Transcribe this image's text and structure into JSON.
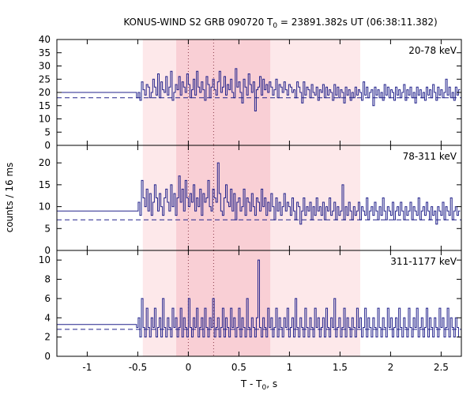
{
  "chart_data": {
    "type": "line",
    "title": {
      "prefix": "KONUS-WIND S2 GRB 090720 T",
      "sub": "0",
      "suffix": " = 23891.382s UT (06:38:11.382)"
    },
    "xlabel": {
      "prefix": "T - T",
      "sub": "0",
      "suffix": ", s"
    },
    "ylabel": "counts / 16 ms",
    "xlim": [
      -1.3,
      2.7
    ],
    "x_ticks": [
      -1,
      -0.5,
      0,
      0.5,
      1,
      1.5,
      2,
      2.5
    ],
    "x_tick_labels": [
      "-1",
      "-0.5",
      "0",
      "0.5",
      "1",
      "1.5",
      "2",
      "2.5"
    ],
    "shaded_regions": [
      {
        "x0": -0.45,
        "x1": 1.7,
        "color": "#fde8ea"
      },
      {
        "x0": -0.12,
        "x1": 0.81,
        "color": "#f9cfd5"
      }
    ],
    "vertical_markers": [
      0.0,
      0.25
    ],
    "bin_width_s": 0.016,
    "series_color": "#22228b",
    "panels": [
      {
        "label": "20-78 keV",
        "ylim": [
          0,
          40
        ],
        "y_ticks": [
          0,
          5,
          10,
          15,
          20,
          25,
          30,
          35,
          40
        ],
        "background_level": 18,
        "pre_trigger_level": 20,
        "series": {
          "t_start": -0.512,
          "values": [
            18,
            20,
            17,
            24,
            21,
            19,
            23,
            22,
            18,
            20,
            25,
            22,
            19,
            27,
            18,
            24,
            21,
            20,
            26,
            19,
            22,
            28,
            17,
            20,
            23,
            21,
            26,
            19,
            24,
            22,
            20,
            27,
            23,
            18,
            21,
            25,
            19,
            28,
            22,
            20,
            24,
            21,
            17,
            26,
            23,
            18,
            22,
            25,
            21,
            19,
            24,
            28,
            20,
            22,
            26,
            19,
            23,
            21,
            25,
            20,
            18,
            29,
            22,
            24,
            20,
            16,
            25,
            22,
            19,
            27,
            23,
            20,
            24,
            13,
            21,
            22,
            26,
            19,
            25,
            21,
            23,
            20,
            24,
            22,
            19,
            21,
            25,
            18,
            23,
            22,
            20,
            24,
            21,
            19,
            23,
            22,
            20,
            21,
            18,
            24,
            22,
            20,
            16,
            24,
            19,
            22,
            21,
            18,
            23,
            20,
            19,
            22,
            17,
            21,
            20,
            23,
            18,
            22,
            19,
            21,
            20,
            17,
            23,
            19,
            22,
            18,
            21,
            20,
            16,
            22,
            19,
            21,
            17,
            20,
            18,
            22,
            19,
            21,
            20,
            17,
            24,
            19,
            22,
            18,
            20,
            21,
            15,
            22,
            19,
            21,
            18,
            20,
            17,
            23,
            19,
            22,
            18,
            21,
            20,
            17,
            22,
            19,
            21,
            18,
            20,
            23,
            17,
            21,
            19,
            22,
            18,
            20,
            16,
            22,
            19,
            21,
            18,
            20,
            17,
            22,
            19,
            21,
            18,
            23,
            20,
            17,
            22,
            19,
            21,
            18,
            20,
            25,
            19,
            22,
            18,
            20,
            17,
            22,
            19,
            21
          ]
        }
      },
      {
        "label": "78-311 keV",
        "ylim": [
          0,
          24
        ],
        "y_ticks": [
          0,
          5,
          10,
          15,
          20
        ],
        "background_level": 7,
        "pre_trigger_level": 9,
        "series": {
          "t_start": -0.512,
          "values": [
            9,
            11,
            8,
            16,
            12,
            10,
            14,
            9,
            13,
            8,
            11,
            15,
            12,
            9,
            13,
            10,
            8,
            12,
            14,
            11,
            9,
            15,
            10,
            13,
            8,
            12,
            17,
            11,
            14,
            9,
            16,
            12,
            10,
            13,
            11,
            15,
            9,
            12,
            10,
            14,
            8,
            13,
            11,
            12,
            16,
            10,
            9,
            14,
            12,
            11,
            20,
            13,
            9,
            8,
            12,
            15,
            11,
            10,
            14,
            9,
            13,
            7,
            11,
            12,
            9,
            10,
            14,
            8,
            12,
            11,
            9,
            13,
            10,
            8,
            12,
            11,
            9,
            14,
            10,
            12,
            8,
            11,
            9,
            13,
            10,
            7,
            12,
            9,
            11,
            8,
            10,
            13,
            9,
            11,
            10,
            8,
            12,
            9,
            7,
            11,
            10,
            6,
            9,
            12,
            8,
            10,
            9,
            11,
            7,
            10,
            8,
            12,
            9,
            10,
            8,
            11,
            7,
            10,
            9,
            12,
            8,
            9,
            11,
            7,
            10,
            8,
            9,
            15,
            7,
            10,
            8,
            11,
            9,
            7,
            10,
            8,
            9,
            11,
            7,
            10,
            9,
            8,
            12,
            7,
            9,
            10,
            8,
            11,
            9,
            7,
            10,
            8,
            12,
            9,
            7,
            10,
            9,
            8,
            11,
            7,
            9,
            10,
            8,
            11,
            9,
            7,
            10,
            8,
            9,
            11,
            7,
            10,
            9,
            8,
            12,
            7,
            9,
            10,
            8,
            11,
            9,
            7,
            10,
            8,
            9,
            6,
            10,
            9,
            8,
            11,
            7,
            10,
            9,
            8,
            12,
            7,
            9,
            10,
            8,
            9
          ]
        }
      },
      {
        "label": "311-1177 keV",
        "ylim": [
          0,
          11
        ],
        "y_ticks": [
          0,
          2,
          4,
          6,
          8,
          10
        ],
        "background_level": 2.8,
        "pre_trigger_level": 3.3,
        "series": {
          "t_start": -0.512,
          "values": [
            3,
            4,
            2,
            6,
            3,
            2,
            5,
            3,
            2,
            4,
            3,
            5,
            2,
            3,
            4,
            2,
            6,
            3,
            2,
            4,
            3,
            2,
            5,
            3,
            4,
            2,
            3,
            5,
            2,
            4,
            3,
            2,
            6,
            3,
            2,
            4,
            3,
            5,
            2,
            3,
            4,
            2,
            5,
            3,
            2,
            4,
            3,
            6,
            2,
            3,
            4,
            2,
            3,
            5,
            2,
            4,
            3,
            2,
            5,
            3,
            4,
            2,
            3,
            5,
            2,
            4,
            3,
            2,
            6,
            3,
            2,
            4,
            3,
            2,
            4,
            10,
            3,
            2,
            4,
            3,
            2,
            5,
            3,
            4,
            2,
            3,
            5,
            2,
            4,
            3,
            2,
            4,
            3,
            5,
            2,
            3,
            4,
            2,
            6,
            3,
            2,
            4,
            3,
            2,
            5,
            3,
            2,
            4,
            3,
            2,
            5,
            3,
            4,
            2,
            3,
            4,
            2,
            5,
            3,
            2,
            4,
            3,
            6,
            2,
            3,
            4,
            2,
            3,
            5,
            2,
            4,
            3,
            2,
            4,
            3,
            2,
            5,
            3,
            4,
            2,
            3,
            5,
            2,
            4,
            3,
            2,
            4,
            3,
            2,
            5,
            3,
            2,
            4,
            3,
            2,
            5,
            3,
            4,
            2,
            3,
            4,
            2,
            5,
            3,
            2,
            4,
            3,
            2,
            5,
            3,
            2,
            4,
            3,
            5,
            2,
            3,
            4,
            2,
            3,
            5,
            2,
            4,
            3,
            2,
            4,
            3,
            2,
            5,
            3,
            4,
            2,
            3,
            5,
            2,
            4,
            3,
            2,
            4,
            3,
            2
          ]
        }
      }
    ]
  }
}
